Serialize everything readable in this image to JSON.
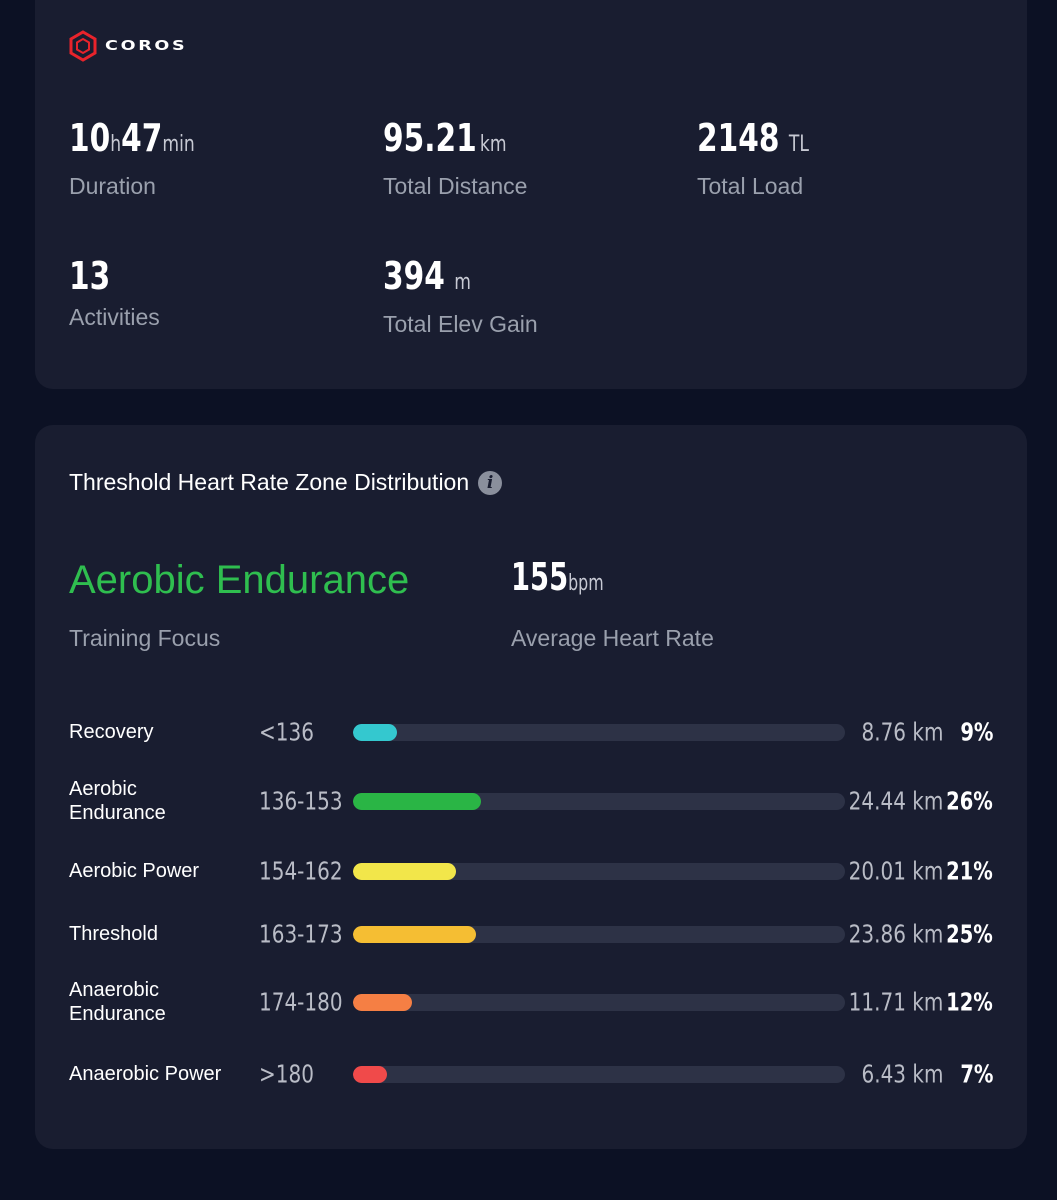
{
  "brand": {
    "name": "COROS",
    "logo_color": "#e8232b"
  },
  "summary": {
    "duration": {
      "hours": "10",
      "hours_unit": "h",
      "minutes": "47",
      "minutes_unit": "min",
      "label": "Duration"
    },
    "distance": {
      "value": "95.21",
      "unit": "km",
      "label": "Total Distance"
    },
    "load": {
      "value": "2148",
      "unit": "TL",
      "label": "Total Load"
    },
    "activities": {
      "value": "13",
      "label": "Activities"
    },
    "elevation": {
      "value": "394",
      "unit": "m",
      "label": "Total Elev Gain"
    }
  },
  "zones_card": {
    "title": "Threshold Heart Rate Zone Distribution",
    "info_icon": "info-icon",
    "training_focus": {
      "value": "Aerobic Endurance",
      "label": "Training Focus",
      "color": "#2fbe4f"
    },
    "avg_heart_rate": {
      "value": "155",
      "unit": "bpm",
      "label": "Average Heart Rate"
    },
    "zones": [
      {
        "name": "Recovery",
        "range": "<136",
        "distance": "8.76 km",
        "percent": "9%",
        "fraction": 0.09,
        "color": "#34c8cf"
      },
      {
        "name": "Aerobic Endurance",
        "range": "136-153",
        "distance": "24.44 km",
        "percent": "26%",
        "fraction": 0.26,
        "color": "#2ab545"
      },
      {
        "name": "Aerobic Power",
        "range": "154-162",
        "distance": "20.01 km",
        "percent": "21%",
        "fraction": 0.21,
        "color": "#f2e64a"
      },
      {
        "name": "Threshold",
        "range": "163-173",
        "distance": "23.86 km",
        "percent": "25%",
        "fraction": 0.25,
        "color": "#f5be33"
      },
      {
        "name": "Anaerobic Endurance",
        "range": "174-180",
        "distance": "11.71 km",
        "percent": "12%",
        "fraction": 0.12,
        "color": "#f57f44"
      },
      {
        "name": "Anaerobic Power",
        "range": ">180",
        "distance": "6.43 km",
        "percent": "7%",
        "fraction": 0.07,
        "color": "#f04a4a"
      }
    ]
  }
}
